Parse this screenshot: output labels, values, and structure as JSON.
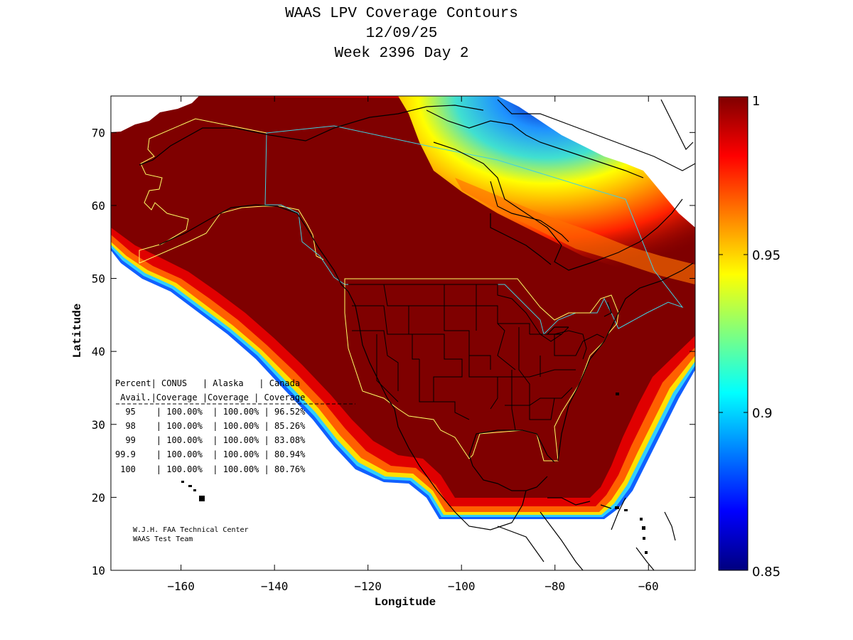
{
  "title": {
    "line1": "WAAS LPV Coverage Contours",
    "line2": "12/09/25",
    "line3": "Week 2396 Day 2"
  },
  "axes": {
    "xlabel": "Longitude",
    "ylabel": "Latitude",
    "xlim": [
      -175,
      -50
    ],
    "ylim": [
      10,
      75
    ],
    "xticks": [
      -160,
      -140,
      -120,
      -100,
      -80,
      -60
    ],
    "yticks": [
      10,
      20,
      30,
      40,
      50,
      60,
      70
    ]
  },
  "colorbar": {
    "range": [
      0.85,
      1
    ],
    "ticks": [
      {
        "value": 1,
        "label": "1"
      },
      {
        "value": 0.95,
        "label": "0.95"
      },
      {
        "value": 0.9,
        "label": "0.9"
      },
      {
        "value": 0.85,
        "label": "0.85"
      }
    ],
    "colors": [
      "#00007f",
      "#0000ff",
      "#007fff",
      "#00ffff",
      "#7fff7f",
      "#ffff00",
      "#ff7f00",
      "#ff0000",
      "#7f0000"
    ]
  },
  "coverage_table": {
    "header1": "Percent| CONUS   | Alaska   | Canada",
    "header2": " Avail.|Coverage |Coverage | Coverage",
    "rows": [
      "  95    | 100.00%  | 100.00% | 96.52%",
      "  98    | 100.00%  | 100.00% | 85.26%",
      "  99    | 100.00%  | 100.00% | 83.08%",
      "99.9    | 100.00%  | 100.00% | 80.94%",
      " 100    | 100.00%  | 100.00% | 80.76%"
    ]
  },
  "credit": {
    "line1": "W.J.H. FAA Technical Center",
    "line2": "WAAS Test Team"
  }
}
